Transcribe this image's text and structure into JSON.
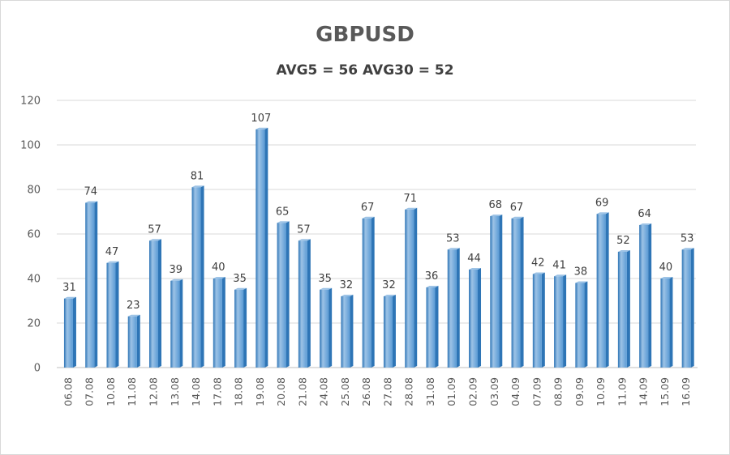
{
  "chart_data": {
    "type": "bar",
    "title": "GBPUSD",
    "subtitle": "AVG5 = 56 AVG30 = 52",
    "xlabel": "",
    "ylabel": "",
    "ylim": [
      0,
      120
    ],
    "yticks": [
      0,
      20,
      40,
      60,
      80,
      100,
      120
    ],
    "grid": true,
    "legend": "none",
    "categories": [
      "06.08",
      "07.08",
      "10.08",
      "11.08",
      "12.08",
      "13.08",
      "14.08",
      "17.08",
      "18.08",
      "19.08",
      "20.08",
      "21.08",
      "24.08",
      "25.08",
      "26.08",
      "27.08",
      "28.08",
      "31.08",
      "01.09",
      "02.09",
      "03.09",
      "04.09",
      "07.09",
      "08.09",
      "09.09",
      "10.09",
      "11.09",
      "14.09",
      "15.09",
      "16.09"
    ],
    "values": [
      31,
      74,
      47,
      23,
      57,
      39,
      81,
      40,
      35,
      107,
      65,
      57,
      35,
      32,
      67,
      32,
      71,
      36,
      53,
      44,
      68,
      67,
      42,
      41,
      38,
      69,
      52,
      64,
      40,
      53
    ],
    "colors": {
      "bar": "#5b9bd5",
      "bar_dark": "#2e75b6",
      "bar_light": "#9dc3e6",
      "grid": "#d9d9d9",
      "axis": "#bfbfbf"
    }
  }
}
